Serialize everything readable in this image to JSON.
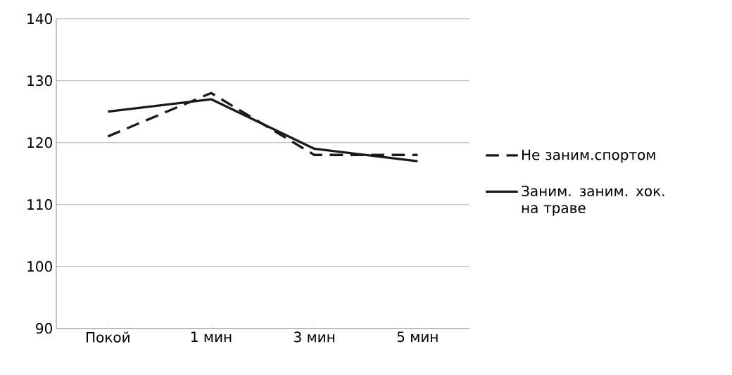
{
  "chart_data": {
    "type": "line",
    "categories": [
      "Покой",
      "1 мин",
      "3 мин",
      "5 мин"
    ],
    "series": [
      {
        "name": "Не заним.спортом",
        "color": "#1a1a1a",
        "line_style": "dashed",
        "values": [
          121,
          128,
          118,
          118
        ]
      },
      {
        "name": "Заним. заним. хок. на траве",
        "color": "#1a1a1a",
        "line_style": "solid",
        "values": [
          125,
          127,
          119,
          117
        ]
      }
    ],
    "ylim": [
      90,
      140
    ],
    "yticks": [
      90,
      100,
      110,
      120,
      130,
      140
    ],
    "grid": "y",
    "legend": "right",
    "marker": "none"
  }
}
